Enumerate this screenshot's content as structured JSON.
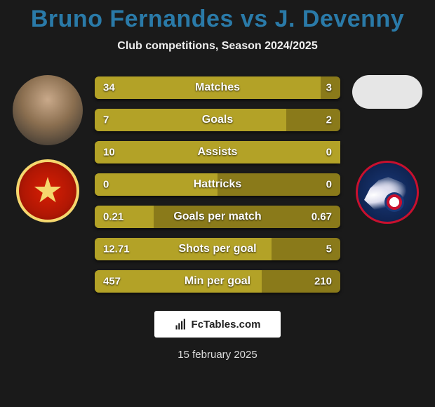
{
  "title": {
    "player1": "Bruno Fernandes",
    "vs": "vs",
    "player2": "J. Devenny",
    "color": "#2a7aa8"
  },
  "subtitle": "Club competitions, Season 2024/2025",
  "left_side": {
    "has_photo": true,
    "club": "manu"
  },
  "right_side": {
    "has_photo": false,
    "club": "palace"
  },
  "bar_colors": {
    "fill": "#b3a227",
    "track": "#8a7a1a"
  },
  "rows": [
    {
      "label": "Matches",
      "left": "34",
      "right": "3",
      "fill_pct": 92
    },
    {
      "label": "Goals",
      "left": "7",
      "right": "2",
      "fill_pct": 78
    },
    {
      "label": "Assists",
      "left": "10",
      "right": "0",
      "fill_pct": 100
    },
    {
      "label": "Hattricks",
      "left": "0",
      "right": "0",
      "fill_pct": 50
    },
    {
      "label": "Goals per match",
      "left": "0.21",
      "right": "0.67",
      "fill_pct": 24
    },
    {
      "label": "Shots per goal",
      "left": "12.71",
      "right": "5",
      "fill_pct": 72
    },
    {
      "label": "Min per goal",
      "left": "457",
      "right": "210",
      "fill_pct": 68
    }
  ],
  "branding": "FcTables.com",
  "date": "15 february 2025"
}
